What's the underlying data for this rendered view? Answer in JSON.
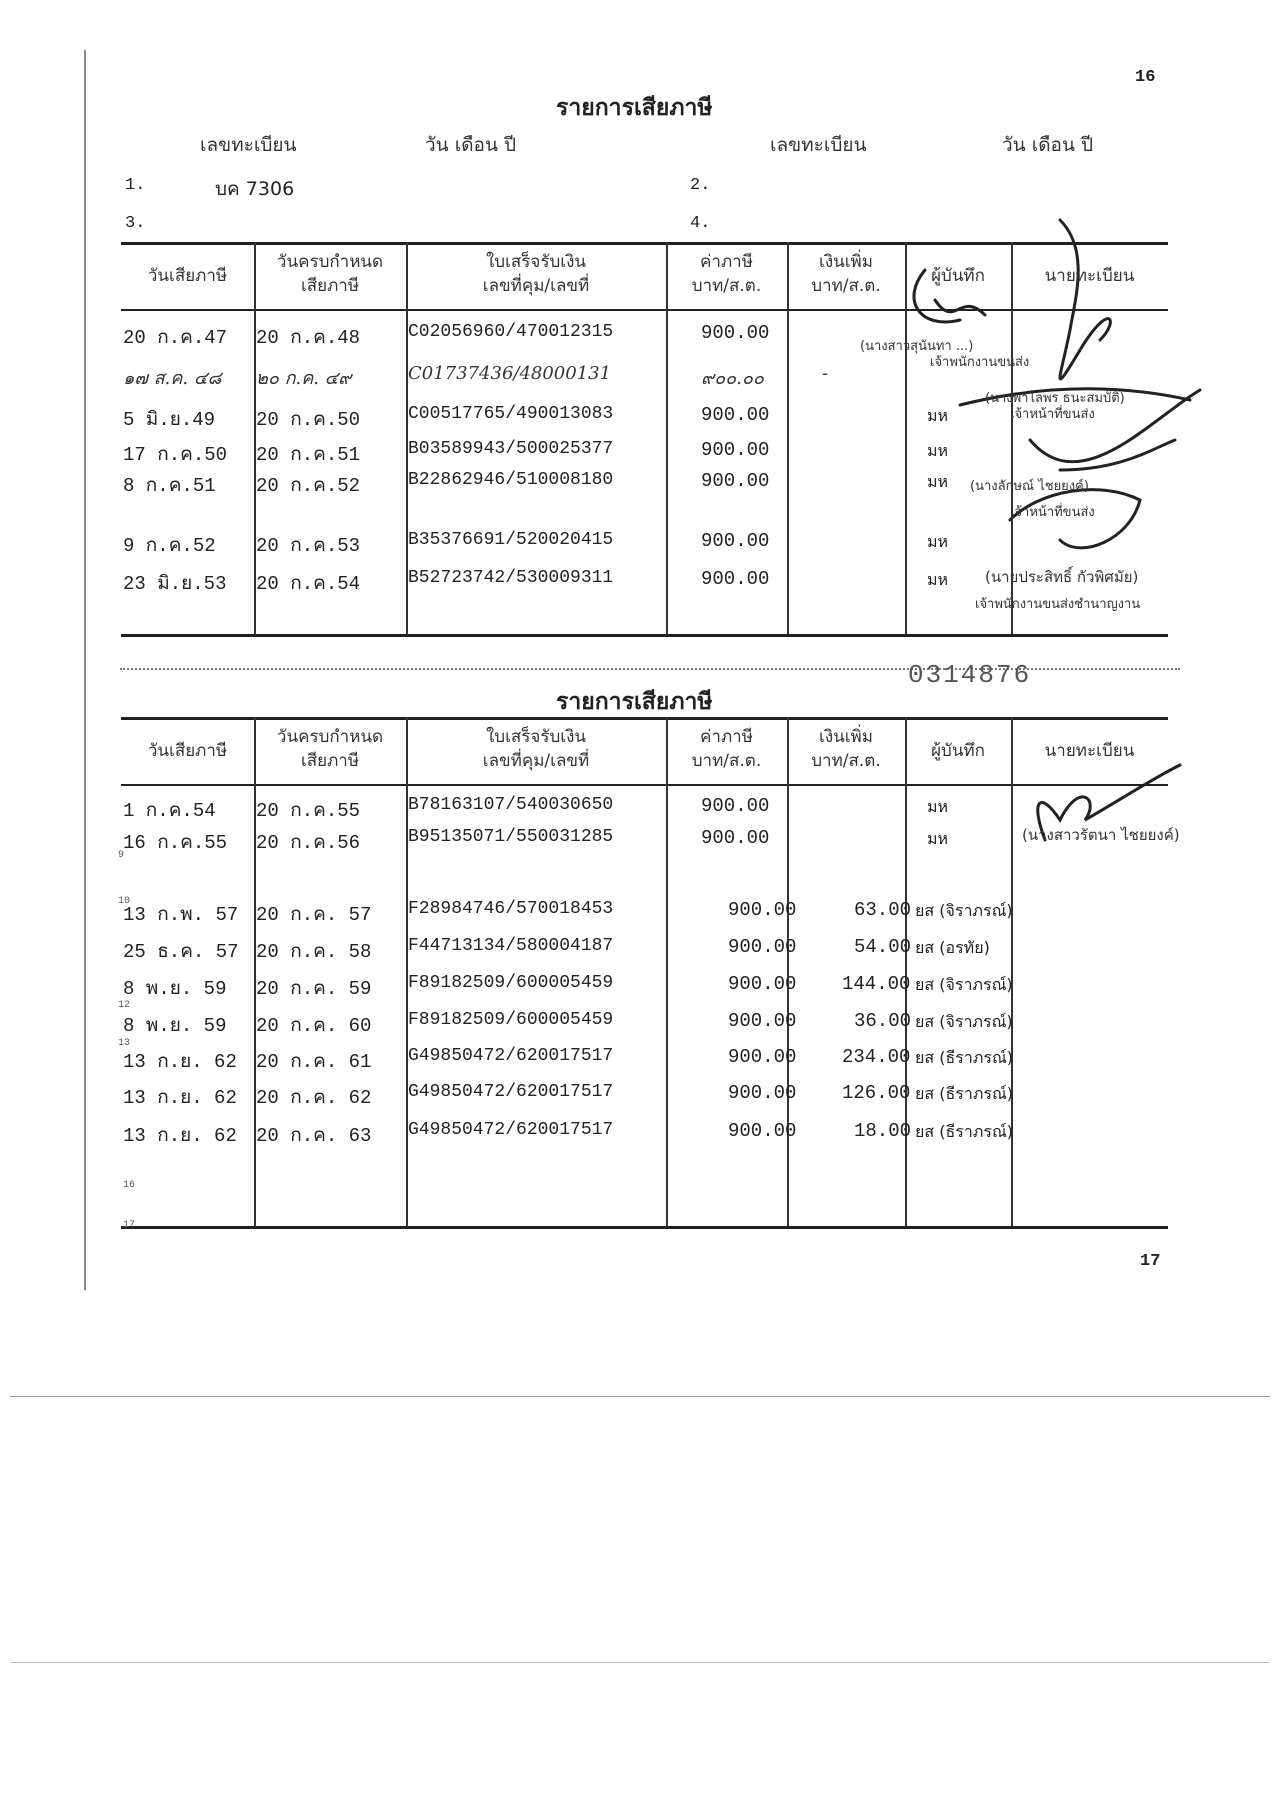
{
  "page_numbers": {
    "top": "16",
    "bottom": "17"
  },
  "serial_number": "0314876",
  "section1": {
    "title": "รายการเสียภาษี",
    "registration_labels": [
      "เลขทะเบียน",
      "วัน เดือน ปี",
      "เลขทะเบียน",
      "วัน เดือน ปี"
    ],
    "registrations": [
      {
        "index": "1.",
        "plate": "บค 7306"
      },
      {
        "index": "2.",
        "plate": ""
      },
      {
        "index": "3.",
        "plate": ""
      },
      {
        "index": "4.",
        "plate": ""
      }
    ],
    "columns": [
      "วันเสียภาษี",
      "วันครบกำหนด\nเสียภาษี",
      "ใบเสร็จรับเงิน\nเลขที่คุม/เลขที่",
      "ค่าภาษี\nบาท/ส.ต.",
      "เงินเพิ่ม\nบาท/ส.ต.",
      "ผู้บันทึก",
      "นายทะเบียน"
    ],
    "rows": [
      {
        "paid": "20 ก.ค.47",
        "due": "20 ก.ค.48",
        "receipt": "C02056960/470012315",
        "tax": "900.00",
        "surcharge": "",
        "recorder": ""
      },
      {
        "paid": "๑๗ ส.ค. ๔๘",
        "due": "๒๐ ก.ค. ๔๙",
        "receipt": "C01737436/48000131",
        "tax": "๙๐๐.๐๐",
        "surcharge": "-",
        "recorder": "",
        "handwritten": true
      },
      {
        "paid": "5 มิ.ย.49",
        "due": "20 ก.ค.50",
        "receipt": "C00517765/490013083",
        "tax": "900.00",
        "surcharge": "",
        "recorder": "มห"
      },
      {
        "paid": "17 ก.ค.50",
        "due": "20 ก.ค.51",
        "receipt": "B03589943/500025377",
        "tax": "900.00",
        "surcharge": "",
        "recorder": "มห"
      },
      {
        "paid": "8 ก.ค.51",
        "due": "20 ก.ค.52",
        "receipt": "B22862946/510008180",
        "tax": "900.00",
        "surcharge": "",
        "recorder": "มห"
      },
      {
        "paid": "9 ก.ค.52",
        "due": "20 ก.ค.53",
        "receipt": "B35376691/520020415",
        "tax": "900.00",
        "surcharge": "",
        "recorder": "มห"
      },
      {
        "paid": "23 มิ.ย.53",
        "due": "20 ก.ค.54",
        "receipt": "B52723742/530009311",
        "tax": "900.00",
        "surcharge": "",
        "recorder": "มห"
      }
    ],
    "registrar_stamps": [
      "(นางสาวสุนันทา ...)",
      "เจ้าพนักงานขนส่ง",
      "(นางพาไลพร ธนะสมบัติ)",
      "เจ้าหน้าที่ขนส่ง",
      "(นางลักษณ์ ไชยยงค์)",
      "เจ้าหน้าที่ขนส่ง",
      "(นายประสิทธิ์ กัวพิศมัย)",
      "เจ้าพนักงานขนส่งชำนาญงาน"
    ]
  },
  "section2": {
    "title": "รายการเสียภาษี",
    "columns": [
      "วันเสียภาษี",
      "วันครบกำหนด\nเสียภาษี",
      "ใบเสร็จรับเงิน\nเลขที่คุม/เลขที่",
      "ค่าภาษี\nบาท/ส.ต.",
      "เงินเพิ่ม\nบาท/ส.ต.",
      "ผู้บันทึก",
      "นายทะเบียน"
    ],
    "rows": [
      {
        "paid": "1 ก.ค.54",
        "due": "20 ก.ค.55",
        "receipt": "B78163107/540030650",
        "tax": "900.00",
        "surcharge": "",
        "recorder": "มห"
      },
      {
        "paid": "16 ก.ค.55",
        "due": "20 ก.ค.56",
        "receipt": "B95135071/550031285",
        "tax": "900.00",
        "surcharge": "",
        "recorder": "มห"
      },
      {
        "paid": "13 ก.พ. 57",
        "due": "20 ก.ค. 57",
        "receipt": "F28984746/570018453",
        "tax": "900.00",
        "surcharge": "63.00",
        "recorder": "ยส (จิราภรณ์)"
      },
      {
        "paid": "25 ธ.ค. 57",
        "due": "20 ก.ค. 58",
        "receipt": "F44713134/580004187",
        "tax": "900.00",
        "surcharge": "54.00",
        "recorder": "ยส (อรทัย)"
      },
      {
        "paid": "8 พ.ย. 59",
        "due": "20 ก.ค. 59",
        "receipt": "F89182509/600005459",
        "tax": "900.00",
        "surcharge": "144.00",
        "recorder": "ยส (จิราภรณ์)"
      },
      {
        "paid": "8 พ.ย. 59",
        "due": "20 ก.ค. 60",
        "receipt": "F89182509/600005459",
        "tax": "900.00",
        "surcharge": "36.00",
        "recorder": "ยส (จิราภรณ์)"
      },
      {
        "paid": "13 ก.ย. 62",
        "due": "20 ก.ค. 61",
        "receipt": "G49850472/620017517",
        "tax": "900.00",
        "surcharge": "234.00",
        "recorder": "ยส (ธีราภรณ์)"
      },
      {
        "paid": "13 ก.ย. 62",
        "due": "20 ก.ค. 62",
        "receipt": "G49850472/620017517",
        "tax": "900.00",
        "surcharge": "126.00",
        "recorder": "ยส (ธีราภรณ์)"
      },
      {
        "paid": "13 ก.ย. 62",
        "due": "20 ก.ค. 63",
        "receipt": "G49850472/620017517",
        "tax": "900.00",
        "surcharge": "18.00",
        "recorder": "ยส (ธีราภรณ์)"
      }
    ],
    "registrar_stamp": "(นางสาวรัตนา ไชยยงค์)",
    "row_numbers": [
      "9",
      "10",
      "12",
      "13",
      "16",
      "17"
    ]
  }
}
